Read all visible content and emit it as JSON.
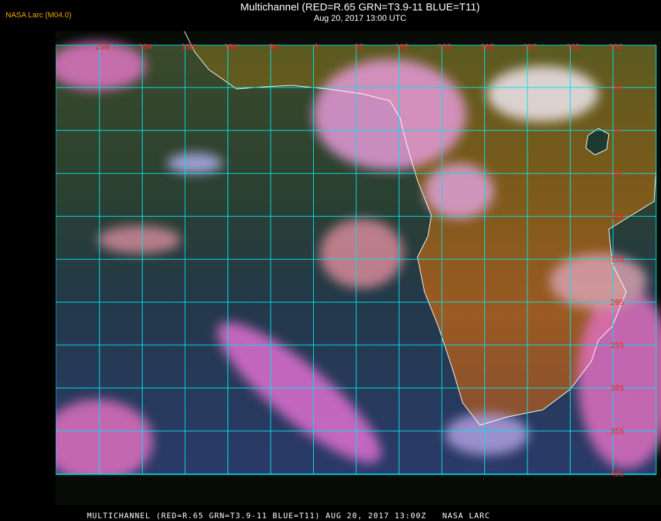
{
  "header": {
    "credit": "NASA Larc (M04.0)",
    "title": "Multichannel (RED=R.65 GRN=T3.9-11 BLUE=T11)",
    "subtitle": "Aug 20, 2017 13:00 UTC"
  },
  "map": {
    "longitude_labels": [
      "25W",
      "20W",
      "15W",
      "10W",
      "5W",
      "0",
      "5E",
      "10E",
      "15E",
      "20E",
      "25E",
      "30E",
      "35E"
    ],
    "latitude_labels": [
      "5N",
      "0",
      "5S",
      "10S",
      "15S",
      "20S",
      "25S",
      "30S",
      "35S",
      "40S"
    ],
    "colors": {
      "grid": "#00e5ee",
      "labels": "#ff1a1a",
      "coastline": "#ffffff",
      "ocean": "#1e3a4a",
      "land": "#8a5a20",
      "cloud": "#e070c0"
    }
  },
  "footer": {
    "text": "MULTICHANNEL (RED=R.65 GRN=T3.9-11 BLUE=T11) AUG 20, 2017 13:00Z   NASA LARC"
  }
}
